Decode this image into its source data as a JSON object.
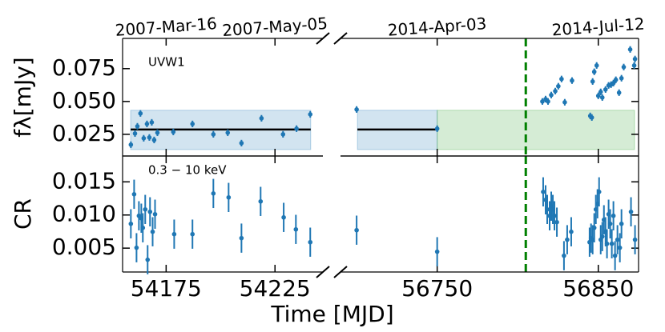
{
  "chart_data": [
    {
      "type": "scatter",
      "ylabel": "fλ[mJy]",
      "annotation": "UVW1",
      "xlim": [
        [
          54155,
          54247
        ],
        [
          56690,
          56875
        ]
      ],
      "xticks": [
        [
          {
            "value": 54175,
            "label": "2007-Mar-16"
          },
          {
            "value": 54225,
            "label": "2007-May-05"
          }
        ],
        [
          {
            "value": 56750,
            "label": "2014-Apr-03"
          },
          {
            "value": 56850,
            "label": "2014-Jul-12"
          }
        ]
      ],
      "ylim": [
        0.0085,
        0.098
      ],
      "yticks": [
        {
          "value": 0.025,
          "label": "0.025"
        },
        {
          "value": 0.05,
          "label": "0.050"
        },
        {
          "value": 0.075,
          "label": "0.075"
        }
      ],
      "spans": [
        {
          "x": [
            54158.7,
            54241.4
          ],
          "y": [
            0.0134,
            0.0433
          ],
          "color": "#1f77b4"
        },
        {
          "x": [
            56700.5,
            56750
          ],
          "y": [
            0.0134,
            0.0433
          ],
          "color": "#1f77b4"
        },
        {
          "x": [
            56750,
            56872.5
          ],
          "y": [
            0.0134,
            0.0433
          ],
          "color": "#2ca02c"
        }
      ],
      "hlines": [
        {
          "y": 0.0287,
          "x": [
            54158.7,
            54241.4
          ]
        },
        {
          "y": 0.0287,
          "x": [
            56700.5,
            56750
          ]
        }
      ],
      "vline": {
        "x": 56805,
        "color": "#008000"
      },
      "series": [
        {
          "color": "#1f77b4",
          "yerr": 0.0025,
          "x": [
            54158.8,
            54160.7,
            54161.8,
            54163.2,
            54164.7,
            54166.2,
            54167.3,
            54168.4,
            54169.5,
            54171.0,
            54178.3,
            54187.1,
            54196.7,
            54203.3,
            54209.6,
            54218.8,
            54228.7,
            54234.9,
            54241.2,
            56700.0,
            56750,
            56815.3,
            56817.3,
            56818.8,
            56820.8,
            56823.3,
            56825.2,
            56827.2,
            56829.2,
            56833.7,
            56845.0,
            56846.0,
            56846.5,
            56847.5,
            56849.0,
            56850,
            56851.5,
            56852.5,
            56854.5,
            56856.4,
            56857.9,
            56859.4,
            56860.9,
            56862.9,
            56864.4,
            56865.8,
            56869.8,
            56872.3,
            56872.8
          ],
          "values": [
            0.0171,
            0.0256,
            0.0311,
            0.0409,
            0.022,
            0.0329,
            0.0226,
            0.0341,
            0.0207,
            0.0262,
            0.0268,
            0.0329,
            0.025,
            0.0262,
            0.0183,
            0.0372,
            0.025,
            0.0293,
            0.0402,
            0.0439,
            0.0293,
            0.05,
            0.0518,
            0.05,
            0.0549,
            0.0579,
            0.0616,
            0.0671,
            0.0494,
            0.0659,
            0.039,
            0.0378,
            0.0652,
            0.0726,
            0.0774,
            0.0543,
            0.0573,
            0.053,
            0.0591,
            0.0622,
            0.0628,
            0.064,
            0.0665,
            0.0567,
            0.0677,
            0.0762,
            0.0896,
            0.0774,
            0.0823
          ]
        }
      ]
    },
    {
      "type": "scatter",
      "ylabel": "CR",
      "xlabel": "Time [MJD]",
      "annotation": "0.3 − 10 keV",
      "xlim": [
        [
          54155,
          54247
        ],
        [
          56690,
          56875
        ]
      ],
      "xticks": [
        [
          54175,
          54225
        ],
        [
          56750,
          56850
        ]
      ],
      "ylim": [
        0.0014,
        0.0189
      ],
      "yticks": [
        0.005,
        {
          "value": 0.01,
          "label": "0.010"
        },
        0.015
      ],
      "vline": {
        "x": 56805,
        "color": "#008000"
      },
      "series": [
        {
          "color": "#1f77b4",
          "yerr": 0.0022,
          "x": [
            54158.8,
            54160.3,
            54161.4,
            54162.5,
            54163.6,
            54164.3,
            54165.4,
            54166.5,
            54167.6,
            54168.8,
            54169.9,
            54178.7,
            54187.1,
            54196.7,
            54203.7,
            54209.6,
            54218.4,
            54229.0,
            54234.6,
            54241.2,
            56700.0,
            56750,
            56815.8,
            56817.3,
            56818.3,
            56819.8,
            56820.8,
            56821.8,
            56822.8,
            56824.3,
            56828.7,
            56830.7,
            56833.2,
            56844.6,
            56845.5,
            56846.5,
            56847.5,
            56848.5,
            56849.5,
            56850.5,
            56851.5,
            56852.5,
            56853.5,
            56854.5,
            56855.4,
            56856.4,
            56857.4,
            56858.4,
            56859.4,
            56860.4,
            56861.9,
            56863.4,
            56864.4,
            56870.3,
            56872.8
          ],
          "values": [
            0.00867,
            0.01313,
            0.00506,
            0.00988,
            0.00952,
            0.00807,
            0.01084,
            0.00325,
            0.01048,
            0.00747,
            0.01012,
            0.00711,
            0.00711,
            0.01325,
            0.01265,
            0.00651,
            0.01205,
            0.00964,
            0.00783,
            0.0059,
            0.00771,
            0.00446,
            0.01349,
            0.01229,
            0.01084,
            0.00988,
            0.01133,
            0.01084,
            0.00988,
            0.00892,
            0.00386,
            0.00627,
            0.00747,
            0.0059,
            0.00651,
            0.00627,
            0.00807,
            0.01084,
            0.01169,
            0.01349,
            0.00627,
            0.00675,
            0.00928,
            0.00747,
            0.00566,
            0.01012,
            0.00867,
            0.00566,
            0.00988,
            0.00386,
            0.00627,
            0.00506,
            0.00867,
            0.01048,
            0.00627
          ]
        }
      ]
    }
  ]
}
